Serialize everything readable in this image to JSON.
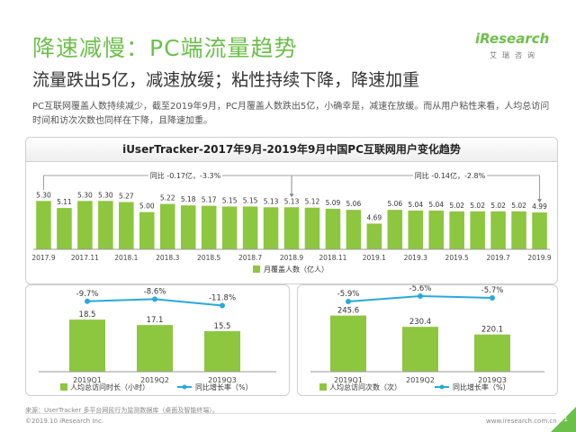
{
  "header": {
    "title": "降速减慢：PC端流量趋势",
    "subtitle": "流量跌出5亿，减速放缓；粘性持续下降，降速加重",
    "description": "PC互联网覆盖人数持续减少，截至2019年9月，PC月覆盖人数跌出5亿，小确幸是，减速在放缓。而从用户粘性来看，人均总访问时间和访次次数也同样在下降，且降速加重。"
  },
  "logo": {
    "text": "iResearch",
    "sub": "艾瑞咨询"
  },
  "footer": {
    "source": "来源：UserTracker 多平台网民行为监测数据库（桌面及智能终端）。",
    "copyright": "©2019.10 iResearch Inc.",
    "site": "www.iresearch.com.cn",
    "page": "11"
  },
  "chart_data": [
    {
      "type": "bar",
      "title": "iUserTracker-2017年9月-2019年9月中国PC互联网用户变化趋势",
      "categories": [
        "2017.9",
        "2017.10",
        "2017.11",
        "2017.12",
        "2018.1",
        "2018.2",
        "2018.3",
        "2018.4",
        "2018.5",
        "2018.6",
        "2018.7",
        "2018.8",
        "2018.9",
        "2018.10",
        "2018.11",
        "2018.12",
        "2019.1",
        "2019.2",
        "2019.3",
        "2019.4",
        "2019.5",
        "2019.6",
        "2019.7",
        "2019.8",
        "2019.9"
      ],
      "tick_labels": [
        "2017.9",
        "2017.11",
        "2018.1",
        "2018.3",
        "2018.5",
        "2018.7",
        "2018.9",
        "2018.11",
        "2019.1",
        "2019.3",
        "2019.5",
        "2019.7",
        "2019.9"
      ],
      "series": [
        {
          "name": "月覆盖人数（亿人）",
          "color": "#8dc63f",
          "values": [
            5.3,
            5.11,
            5.3,
            5.3,
            5.27,
            5.0,
            5.22,
            5.18,
            5.17,
            5.15,
            5.15,
            5.13,
            5.13,
            5.12,
            5.09,
            5.06,
            4.69,
            5.06,
            5.04,
            5.04,
            5.02,
            5.02,
            5.02,
            5.02,
            4.99
          ]
        }
      ],
      "value_labels": [
        "5.30",
        "5.11",
        "5.30",
        "5.30",
        "5.27",
        "5.00",
        "5.22",
        "5.18",
        "5.17",
        "5.15",
        "5.15",
        "5.13",
        "5.13",
        "5.12",
        "5.09",
        "5.06",
        "4.69",
        "5.06",
        "5.04",
        "5.04",
        "5.02",
        "5.02",
        "5.02",
        "5.02",
        "4.99"
      ],
      "annotations": [
        "同比 -0.17亿，-3.3%",
        "同比 -0.14亿，-2.8%"
      ],
      "ylim": [
        4.0,
        5.5
      ]
    },
    {
      "type": "bar",
      "categories": [
        "2019Q1",
        "2019Q2",
        "2019Q3"
      ],
      "series": [
        {
          "name": "人均总访问时长（小时）",
          "type": "bar",
          "color": "#8dc63f",
          "values": [
            18.5,
            17.1,
            15.5
          ]
        },
        {
          "name": "同比增长率（%）",
          "type": "line",
          "color": "#29a8e0",
          "values": [
            -9.7,
            -8.6,
            -11.8
          ]
        }
      ],
      "bar_labels": [
        "18.5",
        "17.1",
        "15.5"
      ],
      "line_labels": [
        "-9.7%",
        "-8.6%",
        "-11.8%"
      ]
    },
    {
      "type": "bar",
      "categories": [
        "2019Q1",
        "2019Q2",
        "2019Q3"
      ],
      "series": [
        {
          "name": "人均总访问次数（次）",
          "type": "bar",
          "color": "#8dc63f",
          "values": [
            245.6,
            230.4,
            220.1
          ]
        },
        {
          "name": "同比增长率（%）",
          "type": "line",
          "color": "#29a8e0",
          "values": [
            -5.9,
            -5.6,
            -5.7
          ]
        }
      ],
      "bar_labels": [
        "245.6",
        "230.4",
        "220.1"
      ],
      "line_labels": [
        "-5.9%",
        "-5.6%",
        "-5.7%"
      ]
    }
  ]
}
